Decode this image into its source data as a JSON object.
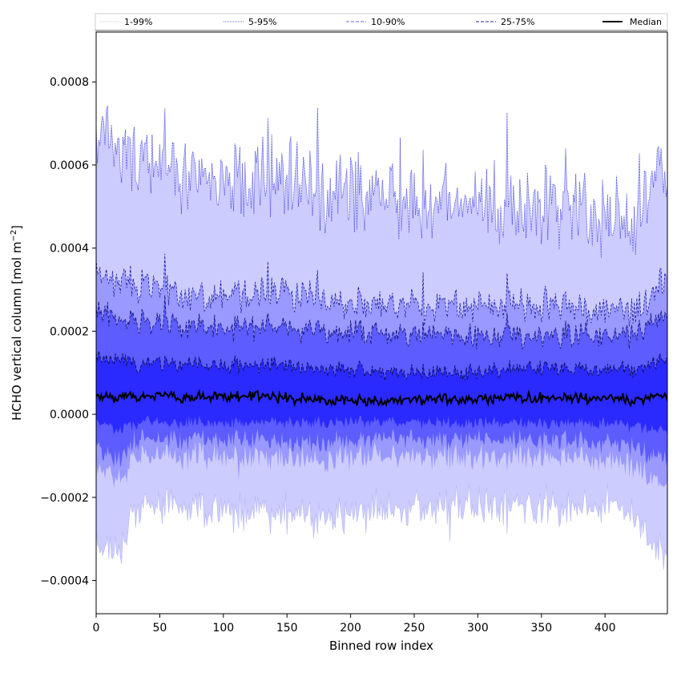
{
  "chart_data": {
    "type": "area",
    "title": "",
    "xlabel": "Binned row index",
    "ylabel_main": "HCHO vertical column [mol m",
    "ylabel_sup": "−2",
    "ylabel_tail": "]",
    "xlim": [
      0,
      449
    ],
    "ylim": [
      -0.00048,
      0.00092
    ],
    "xticks": [
      0,
      50,
      100,
      150,
      200,
      250,
      300,
      350,
      400
    ],
    "xtick_labels": [
      "0",
      "50",
      "100",
      "150",
      "200",
      "250",
      "300",
      "350",
      "400"
    ],
    "yticks": [
      -0.0004,
      -0.0002,
      0.0,
      0.0002,
      0.0004,
      0.0006,
      0.0008
    ],
    "ytick_labels": [
      "−0.0004",
      "−0.0002",
      "0.0000",
      "0.0002",
      "0.0004",
      "0.0006",
      "0.0008"
    ],
    "grid": false,
    "legend_position": "top (above plot, single row)",
    "legend": [
      {
        "label": "1-99%",
        "color": "#d8d8f4",
        "style": "solid-thin"
      },
      {
        "label": "5-95%",
        "color": "#3333cc",
        "style": "dotted-thin"
      },
      {
        "label": "10-90%",
        "color": "#6060e8",
        "style": "dashed"
      },
      {
        "label": "25-75%",
        "color": "#2222aa",
        "style": "dashed"
      },
      {
        "label": "Median",
        "color": "#000000",
        "style": "solid-thick"
      }
    ],
    "band_colors": {
      "p1_99": "#ccccff",
      "p5_95": "#9999ff",
      "p10_90": "#5c5cff",
      "p25_75": "#2a2aff",
      "median": "#000000"
    },
    "series_profile": {
      "x": [
        0,
        10,
        20,
        30,
        50,
        75,
        100,
        125,
        150,
        175,
        200,
        225,
        250,
        275,
        300,
        325,
        350,
        375,
        400,
        425,
        440,
        449
      ],
      "p99": [
        0.00066,
        0.00068,
        0.00062,
        0.00062,
        0.0006,
        0.00058,
        0.00058,
        0.00057,
        0.00056,
        0.00054,
        0.00054,
        0.00052,
        0.00051,
        0.00051,
        0.00052,
        0.00051,
        0.00051,
        0.0005,
        0.00048,
        0.00046,
        0.00056,
        0.0006
      ],
      "p95": [
        0.00034,
        0.00033,
        0.00032,
        0.00031,
        0.0003,
        0.00029,
        0.00029,
        0.00029,
        0.00029,
        0.00028,
        0.00027,
        0.00026,
        0.00026,
        0.00026,
        0.00026,
        0.00026,
        0.00026,
        0.00026,
        0.00025,
        0.00025,
        0.0003,
        0.00033
      ],
      "p90": [
        0.00025,
        0.00024,
        0.00023,
        0.00023,
        0.00022,
        0.00021,
        0.00021,
        0.00021,
        0.00021,
        0.0002,
        0.0002,
        0.00019,
        0.00019,
        0.00019,
        0.00019,
        0.00019,
        0.00019,
        0.00019,
        0.00019,
        0.00019,
        0.00022,
        0.00024
      ],
      "p75": [
        0.00014,
        0.00013,
        0.00013,
        0.00012,
        0.00012,
        0.00012,
        0.00012,
        0.00012,
        0.00012,
        0.00011,
        0.00011,
        0.0001,
        0.0001,
        0.0001,
        0.0001,
        0.00011,
        0.00011,
        0.00011,
        0.00011,
        0.00011,
        0.00012,
        0.00013
      ],
      "median": [
        4.5e-05,
        4e-05,
        4e-05,
        4.5e-05,
        4.5e-05,
        4e-05,
        4.5e-05,
        4.5e-05,
        4e-05,
        3.5e-05,
        3.5e-05,
        3e-05,
        3.5e-05,
        3.5e-05,
        3.5e-05,
        4e-05,
        4e-05,
        4e-05,
        4e-05,
        3.5e-05,
        4e-05,
        4.5e-05
      ],
      "p25": [
        -2e-05,
        -3e-05,
        -4e-05,
        -2e-05,
        -2e-05,
        -2e-05,
        -2e-05,
        -2e-05,
        -2e-05,
        -2e-05,
        -2e-05,
        -2e-05,
        -2e-05,
        -2e-05,
        -2e-05,
        -2e-05,
        -2e-05,
        -2e-05,
        -2e-05,
        -3e-05,
        -4e-05,
        -4e-05
      ],
      "p10": [
        -8e-05,
        -0.0001,
        -0.00011,
        -6e-05,
        -6e-05,
        -6e-05,
        -6e-05,
        -6e-05,
        -7e-05,
        -7e-05,
        -6e-05,
        -6e-05,
        -6e-05,
        -6e-05,
        -6e-05,
        -6e-05,
        -6e-05,
        -6e-05,
        -7e-05,
        -8e-05,
        -0.00011,
        -0.0001
      ],
      "p5": [
        -0.00012,
        -0.00014,
        -0.00016,
        -0.0001,
        -0.0001,
        -0.0001,
        -0.0001,
        -0.0001,
        -0.00011,
        -0.00011,
        -0.0001,
        -0.0001,
        -0.0001,
        -0.0001,
        -0.0001,
        -0.0001,
        -0.0001,
        -0.0001,
        -0.00011,
        -0.00012,
        -0.00017,
        -0.00015
      ],
      "p1": [
        -0.0003,
        -0.00034,
        -0.00033,
        -0.00022,
        -0.00022,
        -0.00022,
        -0.00023,
        -0.00023,
        -0.00024,
        -0.00025,
        -0.00024,
        -0.00023,
        -0.00022,
        -0.00022,
        -0.00022,
        -0.00022,
        -0.00022,
        -0.00022,
        -0.00022,
        -0.00025,
        -0.00034,
        -0.00032
      ]
    }
  }
}
